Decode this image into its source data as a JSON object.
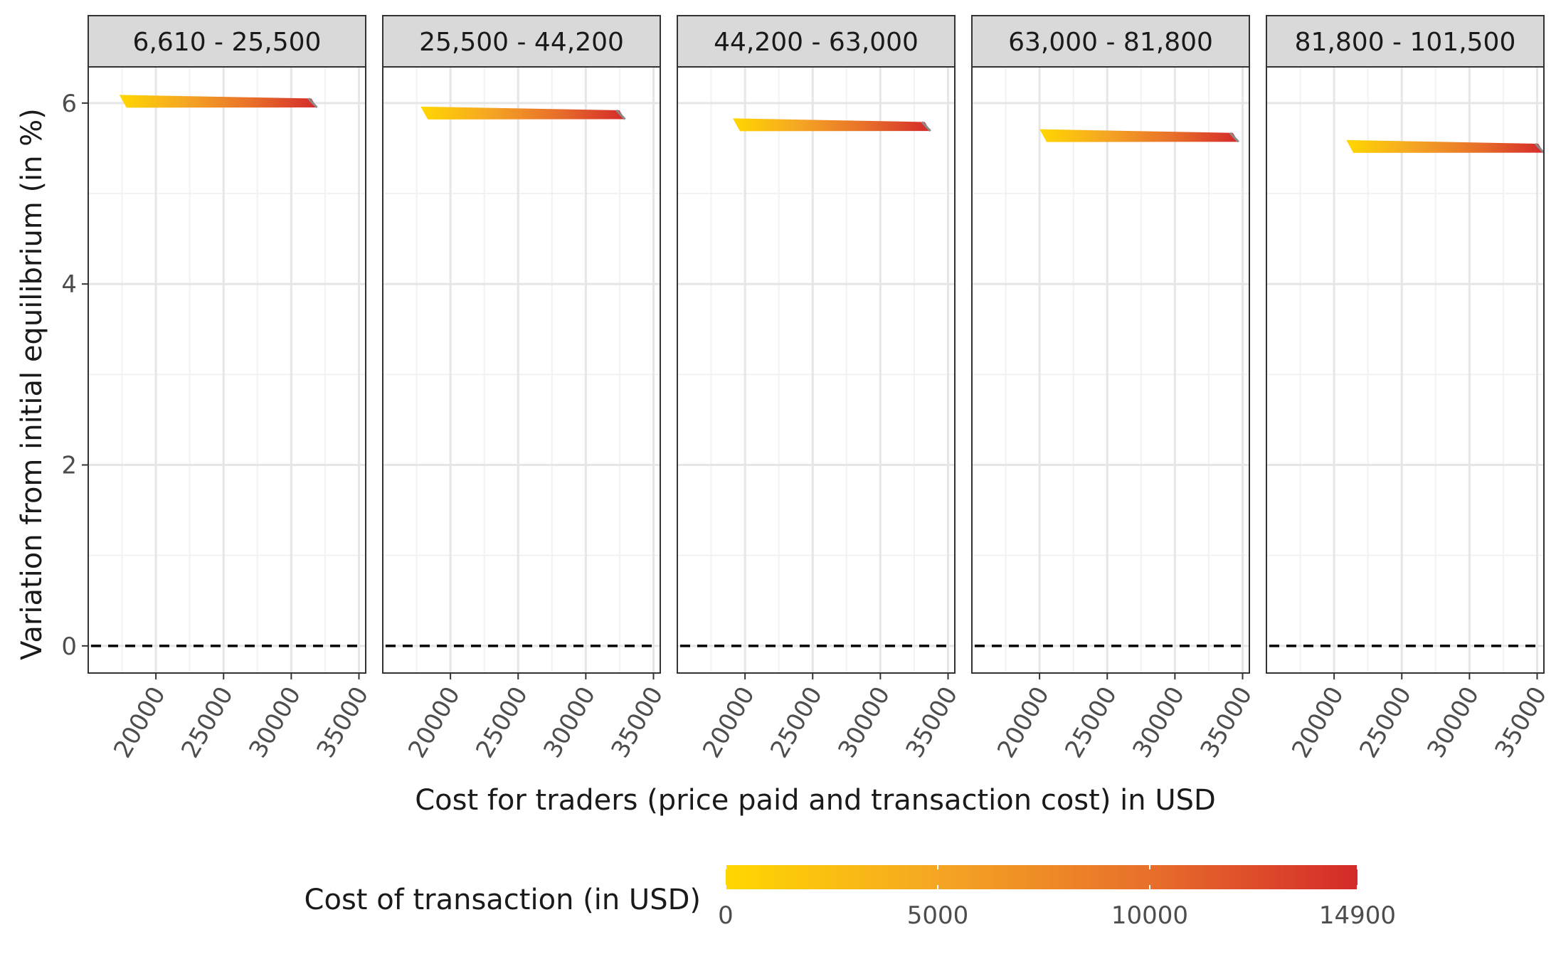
{
  "chart_data": {
    "type": "line",
    "facets": [
      {
        "label": "6,610 - 25,500",
        "x": [
          17300,
          31900
        ],
        "y": [
          6.02,
          5.98
        ]
      },
      {
        "label": "25,500 - 44,200",
        "x": [
          17800,
          32900
        ],
        "y": [
          5.89,
          5.85
        ]
      },
      {
        "label": "44,200 - 63,000",
        "x": [
          19100,
          33700
        ],
        "y": [
          5.76,
          5.72
        ]
      },
      {
        "label": "63,000 - 81,800",
        "x": [
          20000,
          34700
        ],
        "y": [
          5.64,
          5.6
        ]
      },
      {
        "label": "81,800 - 101,500",
        "x": [
          20900,
          35500
        ],
        "y": [
          5.52,
          5.48
        ]
      }
    ],
    "color_scale": {
      "min": 0,
      "max": 14900,
      "colors": [
        "#FFD700",
        "#F5A623",
        "#E8702A",
        "#D42A2A"
      ]
    },
    "xlabel": "Cost for traders (price paid and transaction cost) in USD",
    "ylabel": "Variation from initial equilibrium (in %)",
    "xlim": [
      15000,
      35500
    ],
    "ylim": [
      -0.3,
      6.4
    ],
    "x_ticks": [
      20000,
      25000,
      30000,
      35000
    ],
    "y_ticks": [
      0,
      2,
      4,
      6
    ],
    "reference_line": 0,
    "legend": {
      "title": "Cost of transaction (in USD)",
      "ticks": [
        0,
        5000,
        10000,
        14900
      ],
      "placement": "bottom"
    },
    "grid": true
  }
}
